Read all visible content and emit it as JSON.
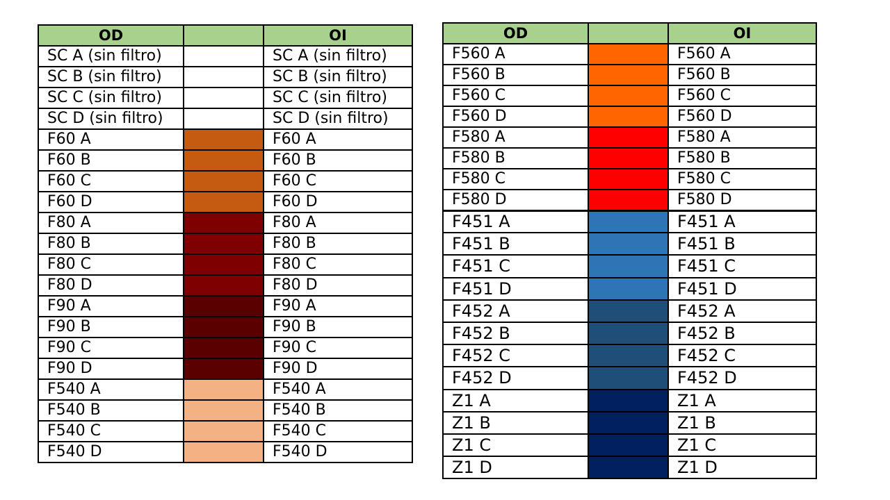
{
  "left_table": {
    "header": {
      "od": "OD",
      "color": "",
      "oi": "OI"
    },
    "rows": [
      {
        "od": "SC A (sin filtro)",
        "oi": "SC A (sin filtro)",
        "color": "#ffffff"
      },
      {
        "od": "SC B (sin filtro)",
        "oi": "SC B (sin filtro)",
        "color": "#ffffff"
      },
      {
        "od": "SC C (sin filtro)",
        "oi": "SC C (sin filtro)",
        "color": "#ffffff"
      },
      {
        "od": "SC D (sin filtro)",
        "oi": "SC D (sin filtro)",
        "color": "#ffffff"
      },
      {
        "od": "F60 A",
        "oi": "F60 A",
        "color": "#c55a11"
      },
      {
        "od": "F60 B",
        "oi": "F60 B",
        "color": "#c55a11"
      },
      {
        "od": "F60 C",
        "oi": "F60 C",
        "color": "#c55a11"
      },
      {
        "od": "F60 D",
        "oi": "F60 D",
        "color": "#c55a11"
      },
      {
        "od": "F80 A",
        "oi": "F80 A",
        "color": "#7f0000"
      },
      {
        "od": "F80 B",
        "oi": "F80 B",
        "color": "#7f0000"
      },
      {
        "od": "F80 C",
        "oi": "F80 C",
        "color": "#7f0000"
      },
      {
        "od": "F80 D",
        "oi": "F80 D",
        "color": "#7f0000"
      },
      {
        "od": "F90 A",
        "oi": "F90 A",
        "color": "#5a0000"
      },
      {
        "od": "F90 B",
        "oi": "F90 B",
        "color": "#5a0000"
      },
      {
        "od": "F90 C",
        "oi": "F90 C",
        "color": "#5a0000"
      },
      {
        "od": "F90 D",
        "oi": "F90 D",
        "color": "#5a0000"
      },
      {
        "od": "F540 A",
        "oi": "F540 A",
        "color": "#f4b183"
      },
      {
        "od": "F540 B",
        "oi": "F540 B",
        "color": "#f4b183"
      },
      {
        "od": "F540 C",
        "oi": "F540 C",
        "color": "#f4b183"
      },
      {
        "od": "F540 D",
        "oi": "F540 D",
        "color": "#f4b183"
      }
    ]
  },
  "right_table": {
    "header": {
      "od": "OD",
      "color": "",
      "oi": "OI"
    },
    "rows": [
      {
        "od": "F560 A",
        "oi": "F560 A",
        "color": "#ff6600"
      },
      {
        "od": "F560 B",
        "oi": "F560 B",
        "color": "#ff6600"
      },
      {
        "od": "F560 C",
        "oi": "F560 C",
        "color": "#ff6600"
      },
      {
        "od": "F560 D",
        "oi": "F560 D",
        "color": "#ff6600"
      },
      {
        "od": "F580 A",
        "oi": "F580 A",
        "color": "#ff0000"
      },
      {
        "od": "F580 B",
        "oi": "F580 B",
        "color": "#ff0000"
      },
      {
        "od": "F580 C",
        "oi": "F580 C",
        "color": "#ff0000"
      },
      {
        "od": "F580 D",
        "oi": "F580 D",
        "color": "#ff0000"
      },
      {
        "od": "F451  A",
        "oi": "F451  A",
        "color": "#2e75b6"
      },
      {
        "od": "F451  B",
        "oi": "F451  B",
        "color": "#2e75b6"
      },
      {
        "od": "F451  C",
        "oi": "F451  C",
        "color": "#2e75b6"
      },
      {
        "od": "F451  D",
        "oi": "F451  D",
        "color": "#2e75b6"
      },
      {
        "od": "F452  A",
        "oi": "F452  A",
        "color": "#1f4e79"
      },
      {
        "od": "F452  B",
        "oi": "F452  B",
        "color": "#1f4e79"
      },
      {
        "od": "F452  C",
        "oi": "F452  C",
        "color": "#1f4e79"
      },
      {
        "od": "F452  D",
        "oi": "F452  D",
        "color": "#1f4e79"
      },
      {
        "od": "Z1  A",
        "oi": "Z1  A",
        "color": "#002060"
      },
      {
        "od": "Z1  B",
        "oi": "Z1  B",
        "color": "#002060"
      },
      {
        "od": "Z1  C",
        "oi": "Z1  C",
        "color": "#002060"
      },
      {
        "od": "Z1  D",
        "oi": "Z1  D",
        "color": "#002060"
      }
    ]
  }
}
